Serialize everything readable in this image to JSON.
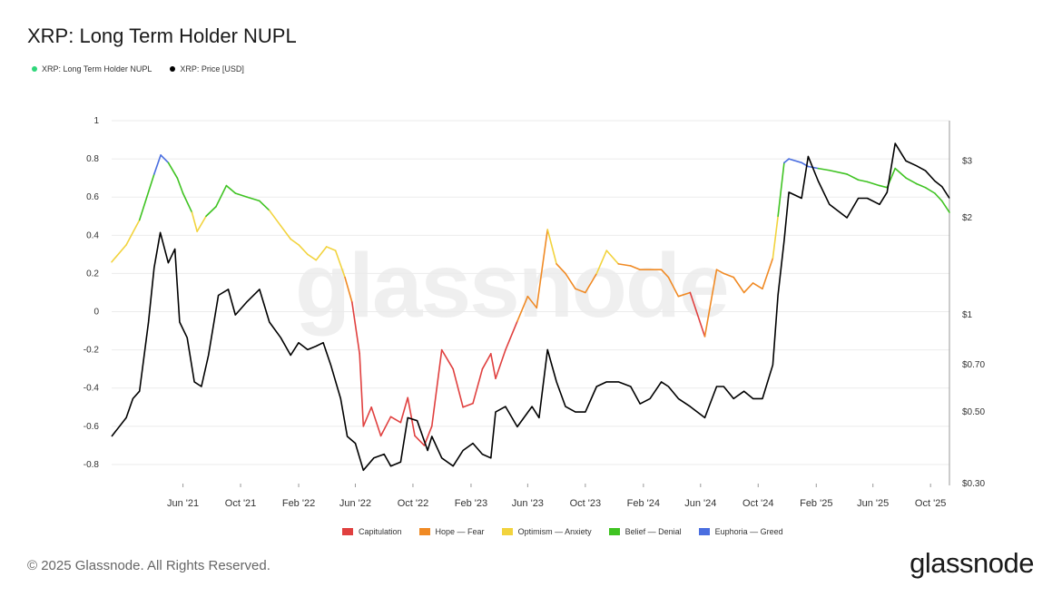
{
  "title": "XRP: Long Term Holder NUPL",
  "legend": [
    {
      "label": "XRP: Long Term Holder NUPL",
      "color": "#2fd67a"
    },
    {
      "label": "XRP: Price [USD]",
      "color": "#000000"
    }
  ],
  "bands": [
    {
      "label": "Capitulation",
      "color": "#e0403f"
    },
    {
      "label": "Hope — Fear",
      "color": "#f08a24"
    },
    {
      "label": "Optimism — Anxiety",
      "color": "#f2d33d"
    },
    {
      "label": "Belief — Denial",
      "color": "#3fc322"
    },
    {
      "label": "Euphoria — Greed",
      "color": "#4a6ee0"
    }
  ],
  "watermark": "glassnode",
  "copyright": "© 2025 Glassnode. All Rights Reserved.",
  "brand": "glassnode",
  "chart_data": {
    "type": "line",
    "x_tick_labels": [
      "Jun '21",
      "Oct '21",
      "Feb '22",
      "Jun '22",
      "Oct '22",
      "Feb '23",
      "Jun '23",
      "Oct '23",
      "Feb '24",
      "Jun '24",
      "Oct '24",
      "Feb '25",
      "Jun '25",
      "Oct '25"
    ],
    "x_ticks": [
      "2021-06-01",
      "2021-10-01",
      "2022-02-01",
      "2022-06-01",
      "2022-10-01",
      "2023-02-01",
      "2023-06-01",
      "2023-10-01",
      "2024-02-01",
      "2024-06-01",
      "2024-10-01",
      "2025-02-01",
      "2025-06-01",
      "2025-10-01"
    ],
    "xlim": [
      "2021-01-01",
      "2025-11-10"
    ],
    "y_left": {
      "ticks": [
        1,
        0.8,
        0.6,
        0.4,
        0.2,
        0,
        -0.2,
        -0.4,
        -0.6,
        -0.8
      ],
      "tick_labels": [
        "1",
        "0.8",
        "0.6",
        "0.4",
        "0.2",
        "0",
        "-0.2",
        "-0.4",
        "-0.6",
        "-0.8"
      ],
      "ylim": [
        -0.9,
        1.0
      ]
    },
    "y_right": {
      "scale": "log",
      "ticks": [
        3,
        2,
        1,
        0.7,
        0.5,
        0.3
      ],
      "tick_labels": [
        "$3",
        "$2",
        "$1",
        "$0.70",
        "$0.50",
        "$0.30"
      ],
      "ylim": [
        0.3,
        4.0
      ]
    },
    "series": [
      {
        "name": "XRP: Long Term Holder NUPL",
        "axis": "left",
        "x": [
          "2021-01-01",
          "2021-02-01",
          "2021-03-01",
          "2021-04-01",
          "2021-04-15",
          "2021-05-01",
          "2021-05-20",
          "2021-06-01",
          "2021-06-20",
          "2021-07-01",
          "2021-07-20",
          "2021-08-10",
          "2021-09-01",
          "2021-09-20",
          "2021-10-15",
          "2021-11-10",
          "2021-12-01",
          "2021-12-25",
          "2022-01-15",
          "2022-02-01",
          "2022-02-20",
          "2022-03-10",
          "2022-04-01",
          "2022-04-20",
          "2022-05-10",
          "2022-05-25",
          "2022-06-10",
          "2022-06-18",
          "2022-07-05",
          "2022-07-25",
          "2022-08-15",
          "2022-09-05",
          "2022-09-20",
          "2022-10-05",
          "2022-10-25",
          "2022-11-10",
          "2022-12-01",
          "2022-12-25",
          "2023-01-15",
          "2023-02-05",
          "2023-02-25",
          "2023-03-15",
          "2023-03-25",
          "2023-04-15",
          "2023-05-10",
          "2023-06-01",
          "2023-06-20",
          "2023-07-13",
          "2023-08-01",
          "2023-08-20",
          "2023-09-10",
          "2023-10-01",
          "2023-10-25",
          "2023-11-15",
          "2023-12-10",
          "2024-01-05",
          "2024-01-25",
          "2024-02-15",
          "2024-03-10",
          "2024-03-25",
          "2024-04-15",
          "2024-05-10",
          "2024-06-10",
          "2024-07-05",
          "2024-07-20",
          "2024-08-10",
          "2024-09-01",
          "2024-09-20",
          "2024-10-10",
          "2024-11-01",
          "2024-11-12",
          "2024-11-25",
          "2024-12-05",
          "2025-01-01",
          "2025-01-15",
          "2025-02-05",
          "2025-03-01",
          "2025-04-07",
          "2025-05-01",
          "2025-05-20",
          "2025-06-15",
          "2025-07-01",
          "2025-07-18",
          "2025-08-10",
          "2025-09-01",
          "2025-09-20",
          "2025-10-10",
          "2025-10-25",
          "2025-11-10"
        ],
        "values": [
          0.26,
          0.35,
          0.48,
          0.72,
          0.82,
          0.78,
          0.7,
          0.62,
          0.52,
          0.42,
          0.5,
          0.55,
          0.66,
          0.62,
          0.6,
          0.58,
          0.53,
          0.45,
          0.38,
          0.35,
          0.3,
          0.27,
          0.34,
          0.32,
          0.18,
          0.05,
          -0.22,
          -0.6,
          -0.5,
          -0.65,
          -0.55,
          -0.58,
          -0.45,
          -0.65,
          -0.7,
          -0.6,
          -0.2,
          -0.3,
          -0.5,
          -0.48,
          -0.3,
          -0.22,
          -0.35,
          -0.2,
          -0.05,
          0.08,
          0.02,
          0.43,
          0.25,
          0.2,
          0.12,
          0.1,
          0.2,
          0.32,
          0.25,
          0.24,
          0.22,
          0.22,
          0.22,
          0.18,
          0.08,
          0.1,
          -0.13,
          0.22,
          0.2,
          0.18,
          0.1,
          0.15,
          0.12,
          0.28,
          0.5,
          0.78,
          0.8,
          0.78,
          0.76,
          0.75,
          0.74,
          0.72,
          0.69,
          0.68,
          0.66,
          0.65,
          0.75,
          0.7,
          0.67,
          0.65,
          0.62,
          0.58,
          0.52
        ]
      },
      {
        "name": "XRP: Price [USD]",
        "axis": "right",
        "x": [
          "2021-01-01",
          "2021-02-01",
          "2021-02-15",
          "2021-03-01",
          "2021-03-20",
          "2021-04-01",
          "2021-04-14",
          "2021-05-01",
          "2021-05-15",
          "2021-05-25",
          "2021-06-10",
          "2021-06-25",
          "2021-07-10",
          "2021-07-25",
          "2021-08-15",
          "2021-09-05",
          "2021-09-20",
          "2021-10-15",
          "2021-11-10",
          "2021-12-01",
          "2021-12-25",
          "2022-01-15",
          "2022-02-01",
          "2022-02-20",
          "2022-03-10",
          "2022-03-25",
          "2022-04-10",
          "2022-05-01",
          "2022-05-15",
          "2022-06-01",
          "2022-06-18",
          "2022-07-10",
          "2022-08-01",
          "2022-08-15",
          "2022-09-05",
          "2022-09-20",
          "2022-10-10",
          "2022-11-01",
          "2022-11-10",
          "2022-12-01",
          "2022-12-25",
          "2023-01-15",
          "2023-02-05",
          "2023-02-25",
          "2023-03-15",
          "2023-03-25",
          "2023-04-15",
          "2023-05-10",
          "2023-06-10",
          "2023-06-25",
          "2023-07-13",
          "2023-08-01",
          "2023-08-20",
          "2023-09-10",
          "2023-10-01",
          "2023-10-25",
          "2023-11-15",
          "2023-12-10",
          "2024-01-05",
          "2024-01-25",
          "2024-02-15",
          "2024-03-10",
          "2024-03-25",
          "2024-04-15",
          "2024-05-10",
          "2024-06-10",
          "2024-07-05",
          "2024-07-20",
          "2024-08-10",
          "2024-09-01",
          "2024-09-20",
          "2024-10-10",
          "2024-11-01",
          "2024-11-12",
          "2024-11-25",
          "2024-12-05",
          "2025-01-01",
          "2025-01-15",
          "2025-02-05",
          "2025-03-01",
          "2025-04-07",
          "2025-05-01",
          "2025-05-20",
          "2025-06-15",
          "2025-07-01",
          "2025-07-18",
          "2025-08-10",
          "2025-09-01",
          "2025-09-20",
          "2025-10-10",
          "2025-10-25",
          "2025-11-10"
        ],
        "values": [
          0.42,
          0.48,
          0.55,
          0.58,
          0.95,
          1.4,
          1.8,
          1.45,
          1.6,
          0.95,
          0.85,
          0.62,
          0.6,
          0.75,
          1.15,
          1.2,
          1.0,
          1.1,
          1.2,
          0.95,
          0.85,
          0.75,
          0.82,
          0.78,
          0.8,
          0.82,
          0.7,
          0.55,
          0.42,
          0.4,
          0.33,
          0.36,
          0.37,
          0.34,
          0.35,
          0.48,
          0.47,
          0.38,
          0.42,
          0.36,
          0.34,
          0.38,
          0.4,
          0.37,
          0.36,
          0.5,
          0.52,
          0.45,
          0.52,
          0.48,
          0.78,
          0.62,
          0.52,
          0.5,
          0.5,
          0.6,
          0.62,
          0.62,
          0.6,
          0.53,
          0.55,
          0.62,
          0.6,
          0.55,
          0.52,
          0.48,
          0.6,
          0.6,
          0.55,
          0.58,
          0.55,
          0.55,
          0.7,
          1.15,
          1.7,
          2.4,
          2.3,
          3.1,
          2.6,
          2.2,
          2.0,
          2.3,
          2.3,
          2.2,
          2.4,
          3.4,
          3.0,
          2.9,
          2.8,
          2.6,
          2.5,
          2.3
        ]
      }
    ],
    "grid": true
  }
}
